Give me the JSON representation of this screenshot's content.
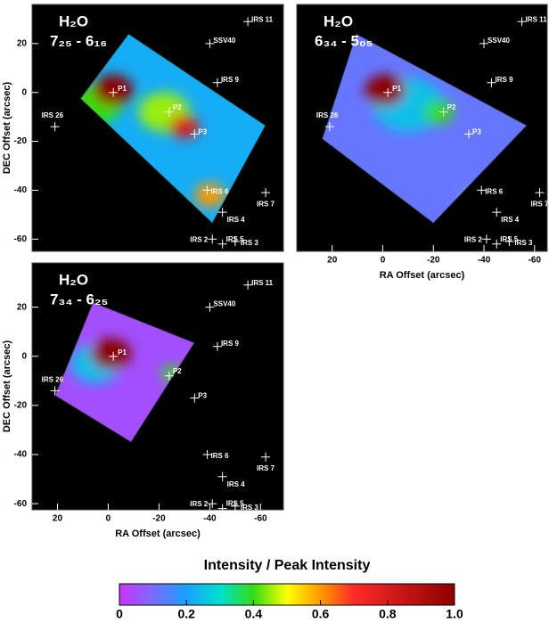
{
  "chart_data": [
    {
      "type": "map",
      "title": "H₂O",
      "subtitle": "7₂₅ - 6₁₆",
      "ylabel": "DEC Offset (arcsec)",
      "xlim": [
        30,
        -69
      ],
      "ylim": [
        36,
        -65
      ],
      "yticks": [
        20,
        0,
        -20,
        -40,
        -60
      ],
      "footprint": [
        [
          -8,
          24
        ],
        [
          -62,
          -13.5
        ],
        [
          -41,
          -53.5
        ],
        [
          11,
          -2.5
        ]
      ],
      "base": 0.22,
      "blobs": [
        {
          "x": 5,
          "y": -5,
          "r": 10,
          "value": 0.4
        },
        {
          "x": -22,
          "y": -8,
          "r": 10,
          "value": 0.45
        },
        {
          "x": -40,
          "y": -42,
          "r": 6,
          "value": 0.6
        },
        {
          "x": -30,
          "y": -14,
          "r": 6,
          "value": 0.8
        },
        {
          "x": -2,
          "y": 1,
          "r": 8,
          "value": 1.0
        }
      ],
      "sources": [
        {
          "name": "IRS 11",
          "x": -55,
          "y": 29
        },
        {
          "name": "SSV40",
          "x": -40,
          "y": 20
        },
        {
          "name": "IRS 9",
          "x": -43,
          "y": 4
        },
        {
          "name": "IRS 26",
          "x": 21,
          "y": -14
        },
        {
          "name": "P1",
          "x": -2,
          "y": 0
        },
        {
          "name": "P2",
          "x": -24,
          "y": -8
        },
        {
          "name": "P3",
          "x": -34,
          "y": -17
        },
        {
          "name": "IRS 6",
          "x": -39,
          "y": -40
        },
        {
          "name": "IRS 7",
          "x": -62,
          "y": -41
        },
        {
          "name": "IRS 4",
          "x": -45,
          "y": -49
        },
        {
          "name": "IRS 2",
          "x": -41,
          "y": -60
        },
        {
          "name": "IRS 5",
          "x": -45,
          "y": -62
        },
        {
          "name": "IRS 3",
          "x": -50,
          "y": -61
        }
      ]
    },
    {
      "type": "map",
      "title": "H₂O",
      "subtitle": "6₃₄ - 5₀₅",
      "xlabel": "RA Offset (arcsec)",
      "xlim": [
        34,
        -65
      ],
      "ylim": [
        36,
        -65
      ],
      "xticks": [
        20,
        0,
        -20,
        -40,
        -60
      ],
      "footprint": [
        [
          10.5,
          24
        ],
        [
          -57,
          -13.5
        ],
        [
          -20,
          -53.5
        ],
        [
          24,
          -19
        ]
      ],
      "base": 0.12,
      "blobs": [
        {
          "x": -10,
          "y": -5,
          "r": 14,
          "value": 0.25
        },
        {
          "x": -22,
          "y": -8,
          "r": 6,
          "value": 0.4
        },
        {
          "x": -37,
          "y": -45,
          "r": 5,
          "value": 0.5
        },
        {
          "x": -1,
          "y": 1,
          "r": 8,
          "value": 1.0
        }
      ],
      "sources": [
        {
          "name": "IRS 11",
          "x": -55,
          "y": 29
        },
        {
          "name": "SSV40",
          "x": -40,
          "y": 20
        },
        {
          "name": "IRS 9",
          "x": -43,
          "y": 4
        },
        {
          "name": "IRS 26",
          "x": 21,
          "y": -14
        },
        {
          "name": "P1",
          "x": -2,
          "y": 0
        },
        {
          "name": "P2",
          "x": -24,
          "y": -8
        },
        {
          "name": "P3",
          "x": -34,
          "y": -17
        },
        {
          "name": "IRS 6",
          "x": -39,
          "y": -40
        },
        {
          "name": "IRS 7",
          "x": -62,
          "y": -41
        },
        {
          "name": "IRS 4",
          "x": -45,
          "y": -49
        },
        {
          "name": "IRS 2",
          "x": -41,
          "y": -60
        },
        {
          "name": "IRS 5",
          "x": -45,
          "y": -62
        },
        {
          "name": "IRS 3",
          "x": -50,
          "y": -61
        }
      ]
    },
    {
      "type": "map",
      "title": "H₂O",
      "subtitle": "7₃₄ - 6₂₅",
      "xlabel": "RA Offset (arcsec)",
      "ylabel": "DEC Offset (arcsec)",
      "xlim": [
        30,
        -69
      ],
      "ylim": [
        38,
        -62.5
      ],
      "xticks": [
        20,
        0,
        -20,
        -40,
        -60
      ],
      "yticks": [
        20,
        0,
        -20,
        -40,
        -60
      ],
      "footprint": [
        [
          6,
          22
        ],
        [
          -34,
          5.5
        ],
        [
          -9,
          -35
        ],
        [
          21,
          -16
        ]
      ],
      "base": 0.05,
      "blobs": [
        {
          "x": 5,
          "y": -3,
          "r": 10,
          "value": 0.25
        },
        {
          "x": -25,
          "y": -7,
          "r": 4,
          "value": 0.4
        },
        {
          "x": -1,
          "y": 1,
          "r": 8,
          "value": 1.0
        }
      ],
      "sources": [
        {
          "name": "IRS 11",
          "x": -55,
          "y": 29
        },
        {
          "name": "SSV40",
          "x": -40,
          "y": 20
        },
        {
          "name": "IRS 9",
          "x": -43,
          "y": 4
        },
        {
          "name": "IRS 26",
          "x": 21,
          "y": -14
        },
        {
          "name": "P1",
          "x": -2,
          "y": 0
        },
        {
          "name": "P2",
          "x": -24,
          "y": -8
        },
        {
          "name": "P3",
          "x": -34,
          "y": -17
        },
        {
          "name": "IRS 6",
          "x": -39,
          "y": -40
        },
        {
          "name": "IRS 7",
          "x": -62,
          "y": -41
        },
        {
          "name": "IRS 4",
          "x": -45,
          "y": -49
        },
        {
          "name": "IRS 2",
          "x": -41,
          "y": -60
        },
        {
          "name": "IRS 5",
          "x": -45,
          "y": -62
        },
        {
          "name": "IRS 3",
          "x": -50,
          "y": -61
        }
      ]
    },
    {
      "type": "colorbar",
      "title": "Intensity / Peak Intensity",
      "xlim": [
        0,
        1
      ],
      "xticks": [
        0,
        0.2,
        0.4,
        0.6,
        0.8,
        {
          "value": 1,
          "label": "1.0"
        }
      ],
      "colormap": [
        [
          0,
          "#cc33ff"
        ],
        [
          0.1,
          "#7a6bff"
        ],
        [
          0.2,
          "#1aa0ff"
        ],
        [
          0.3,
          "#00e0d0"
        ],
        [
          0.4,
          "#33dd11"
        ],
        [
          0.5,
          "#ffff00"
        ],
        [
          0.6,
          "#ff9900"
        ],
        [
          0.7,
          "#ff2a2a"
        ],
        [
          1,
          "#8b0000"
        ]
      ]
    }
  ]
}
